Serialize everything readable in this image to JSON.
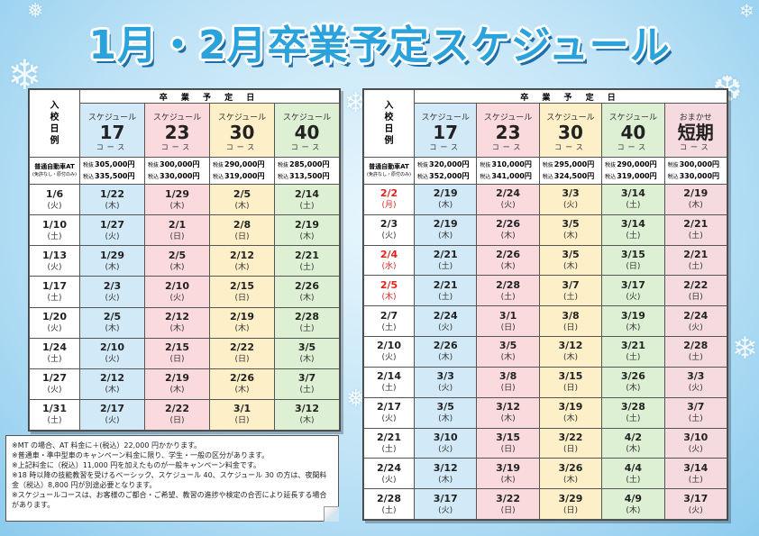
{
  "title": "1月・2月卒業予定スケジュール",
  "header_labels": {
    "entry": "入校日例",
    "graduation": "卒 業 予 定 日",
    "course_name": "スケジュール",
    "course_unit": "コース",
    "price_row_label": "普通自動車AT",
    "price_row_sub": "(免許なし・原付のみ)",
    "price_tax_ex": "税抜",
    "price_tax_in": "税込"
  },
  "left_table": {
    "courses": [
      {
        "name": "スケジュール",
        "num": "17",
        "unit": "コース",
        "price_ex": "305,000円",
        "price_in": "335,500円",
        "color": "#d2eaf7"
      },
      {
        "name": "スケジュール",
        "num": "23",
        "unit": "コース",
        "price_ex": "300,000円",
        "price_in": "330,000円",
        "color": "#fadadd"
      },
      {
        "name": "スケジュール",
        "num": "30",
        "unit": "コース",
        "price_ex": "290,000円",
        "price_in": "319,000円",
        "color": "#fdefc8"
      },
      {
        "name": "スケジュール",
        "num": "40",
        "unit": "コース",
        "price_ex": "285,000円",
        "price_in": "313,500円",
        "color": "#def0d4"
      }
    ],
    "rows": [
      {
        "entry": [
          "1/6",
          "(火)"
        ],
        "cells": [
          [
            "1/22",
            "(木)"
          ],
          [
            "1/29",
            "(木)"
          ],
          [
            "2/5",
            "(木)"
          ],
          [
            "2/14",
            "(土)"
          ]
        ]
      },
      {
        "entry": [
          "1/10",
          "(土)"
        ],
        "cells": [
          [
            "1/27",
            "(火)"
          ],
          [
            "2/1",
            "(日)"
          ],
          [
            "2/8",
            "(日)"
          ],
          [
            "2/19",
            "(木)"
          ]
        ]
      },
      {
        "entry": [
          "1/13",
          "(火)"
        ],
        "cells": [
          [
            "1/29",
            "(木)"
          ],
          [
            "2/5",
            "(木)"
          ],
          [
            "2/12",
            "(木)"
          ],
          [
            "2/21",
            "(土)"
          ]
        ]
      },
      {
        "entry": [
          "1/17",
          "(土)"
        ],
        "cells": [
          [
            "2/3",
            "(火)"
          ],
          [
            "2/10",
            "(火)"
          ],
          [
            "2/15",
            "(日)"
          ],
          [
            "2/26",
            "(木)"
          ]
        ]
      },
      {
        "entry": [
          "1/20",
          "(火)"
        ],
        "cells": [
          [
            "2/5",
            "(木)"
          ],
          [
            "2/12",
            "(木)"
          ],
          [
            "2/19",
            "(木)"
          ],
          [
            "2/28",
            "(土)"
          ]
        ]
      },
      {
        "entry": [
          "1/24",
          "(土)"
        ],
        "cells": [
          [
            "2/10",
            "(火)"
          ],
          [
            "2/15",
            "(日)"
          ],
          [
            "2/22",
            "(日)"
          ],
          [
            "3/5",
            "(木)"
          ]
        ]
      },
      {
        "entry": [
          "1/27",
          "(火)"
        ],
        "cells": [
          [
            "2/12",
            "(木)"
          ],
          [
            "2/19",
            "(木)"
          ],
          [
            "2/26",
            "(木)"
          ],
          [
            "3/7",
            "(土)"
          ]
        ]
      },
      {
        "entry": [
          "1/31",
          "(土)"
        ],
        "cells": [
          [
            "2/17",
            "(火)"
          ],
          [
            "2/22",
            "(日)"
          ],
          [
            "3/1",
            "(日)"
          ],
          [
            "3/12",
            "(木)"
          ]
        ]
      }
    ]
  },
  "right_table": {
    "courses": [
      {
        "name": "スケジュール",
        "num": "17",
        "unit": "コース",
        "price_ex": "320,000円",
        "price_in": "352,000円",
        "color": "#d2eaf7"
      },
      {
        "name": "スケジュール",
        "num": "23",
        "unit": "コース",
        "price_ex": "310,000円",
        "price_in": "341,000円",
        "color": "#fadadd"
      },
      {
        "name": "スケジュール",
        "num": "30",
        "unit": "コース",
        "price_ex": "295,000円",
        "price_in": "324,500円",
        "color": "#fdefc8"
      },
      {
        "name": "スケジュール",
        "num": "40",
        "unit": "コース",
        "price_ex": "290,000円",
        "price_in": "319,000円",
        "color": "#def0d4"
      },
      {
        "name": "おまかせ",
        "num": "短期",
        "unit": "コース",
        "price_ex": "300,000円",
        "price_in": "330,000円",
        "color": "#f5dbe0"
      }
    ],
    "rows": [
      {
        "entry": [
          "2/2",
          "(月)"
        ],
        "red": true,
        "cells": [
          [
            "2/19",
            "(木)"
          ],
          [
            "2/24",
            "(火)"
          ],
          [
            "3/3",
            "(火)"
          ],
          [
            "3/14",
            "(土)"
          ],
          [
            "2/19",
            "(木)"
          ]
        ]
      },
      {
        "entry": [
          "2/3",
          "(火)"
        ],
        "red": false,
        "cells": [
          [
            "2/19",
            "(木)"
          ],
          [
            "2/26",
            "(木)"
          ],
          [
            "3/5",
            "(木)"
          ],
          [
            "3/14",
            "(土)"
          ],
          [
            "2/21",
            "(土)"
          ]
        ]
      },
      {
        "entry": [
          "2/4",
          "(水)"
        ],
        "red": true,
        "cells": [
          [
            "2/21",
            "(土)"
          ],
          [
            "2/26",
            "(木)"
          ],
          [
            "3/5",
            "(木)"
          ],
          [
            "3/15",
            "(日)"
          ],
          [
            "2/21",
            "(土)"
          ]
        ]
      },
      {
        "entry": [
          "2/5",
          "(木)"
        ],
        "red": true,
        "cells": [
          [
            "2/21",
            "(土)"
          ],
          [
            "2/28",
            "(土)"
          ],
          [
            "3/7",
            "(土)"
          ],
          [
            "3/17",
            "(火)"
          ],
          [
            "2/22",
            "(日)"
          ]
        ]
      },
      {
        "entry": [
          "2/7",
          "(土)"
        ],
        "red": false,
        "cells": [
          [
            "2/24",
            "(火)"
          ],
          [
            "3/1",
            "(日)"
          ],
          [
            "3/8",
            "(日)"
          ],
          [
            "3/19",
            "(木)"
          ],
          [
            "2/24",
            "(火)"
          ]
        ]
      },
      {
        "entry": [
          "2/10",
          "(火)"
        ],
        "red": false,
        "cells": [
          [
            "2/26",
            "(木)"
          ],
          [
            "3/5",
            "(木)"
          ],
          [
            "3/12",
            "(木)"
          ],
          [
            "3/21",
            "(土)"
          ],
          [
            "2/28",
            "(土)"
          ]
        ]
      },
      {
        "entry": [
          "2/14",
          "(土)"
        ],
        "red": false,
        "cells": [
          [
            "3/3",
            "(火)"
          ],
          [
            "3/8",
            "(日)"
          ],
          [
            "3/15",
            "(日)"
          ],
          [
            "3/26",
            "(木)"
          ],
          [
            "3/3",
            "(火)"
          ]
        ]
      },
      {
        "entry": [
          "2/17",
          "(火)"
        ],
        "red": false,
        "cells": [
          [
            "3/5",
            "(木)"
          ],
          [
            "3/12",
            "(木)"
          ],
          [
            "3/19",
            "(木)"
          ],
          [
            "3/28",
            "(土)"
          ],
          [
            "3/7",
            "(土)"
          ]
        ]
      },
      {
        "entry": [
          "2/21",
          "(土)"
        ],
        "red": false,
        "cells": [
          [
            "3/10",
            "(火)"
          ],
          [
            "3/15",
            "(日)"
          ],
          [
            "3/22",
            "(日)"
          ],
          [
            "4/2",
            "(木)"
          ],
          [
            "3/10",
            "(火)"
          ]
        ]
      },
      {
        "entry": [
          "2/24",
          "(火)"
        ],
        "red": false,
        "cells": [
          [
            "3/12",
            "(木)"
          ],
          [
            "3/19",
            "(木)"
          ],
          [
            "3/26",
            "(木)"
          ],
          [
            "4/4",
            "(土)"
          ],
          [
            "3/14",
            "(土)"
          ]
        ]
      },
      {
        "entry": [
          "2/28",
          "(土)"
        ],
        "red": false,
        "cells": [
          [
            "3/17",
            "(火)"
          ],
          [
            "3/22",
            "(日)"
          ],
          [
            "3/29",
            "(日)"
          ],
          [
            "4/9",
            "(木)"
          ],
          [
            "3/17",
            "(火)"
          ]
        ]
      }
    ]
  },
  "notes": [
    "※MT の場合、AT 料金に＋(税込）22,000 円かかります。",
    "※普通車・準中型車のキャンペーン料金に限り、学生・一般の区分があります。",
    "※上記料金に（税込）11,000 円を加えたものが一般キャンペーン料金です。",
    "※18 時以降の技能教習を受けるベーシック、スケジュール 40、スケジュール 30 の方は、夜間料金（税込）8,800 円が別途必要となります。",
    "※スケジュールコースは、お客様のご都合・ご希望、教習の進捗や検定の合否により延長する場合があります。"
  ],
  "colors": {
    "title": "#2aa2dc",
    "title_shadow": "#1e6ea8",
    "holiday_red": "#e0241b",
    "background": "#bfe3f6"
  }
}
